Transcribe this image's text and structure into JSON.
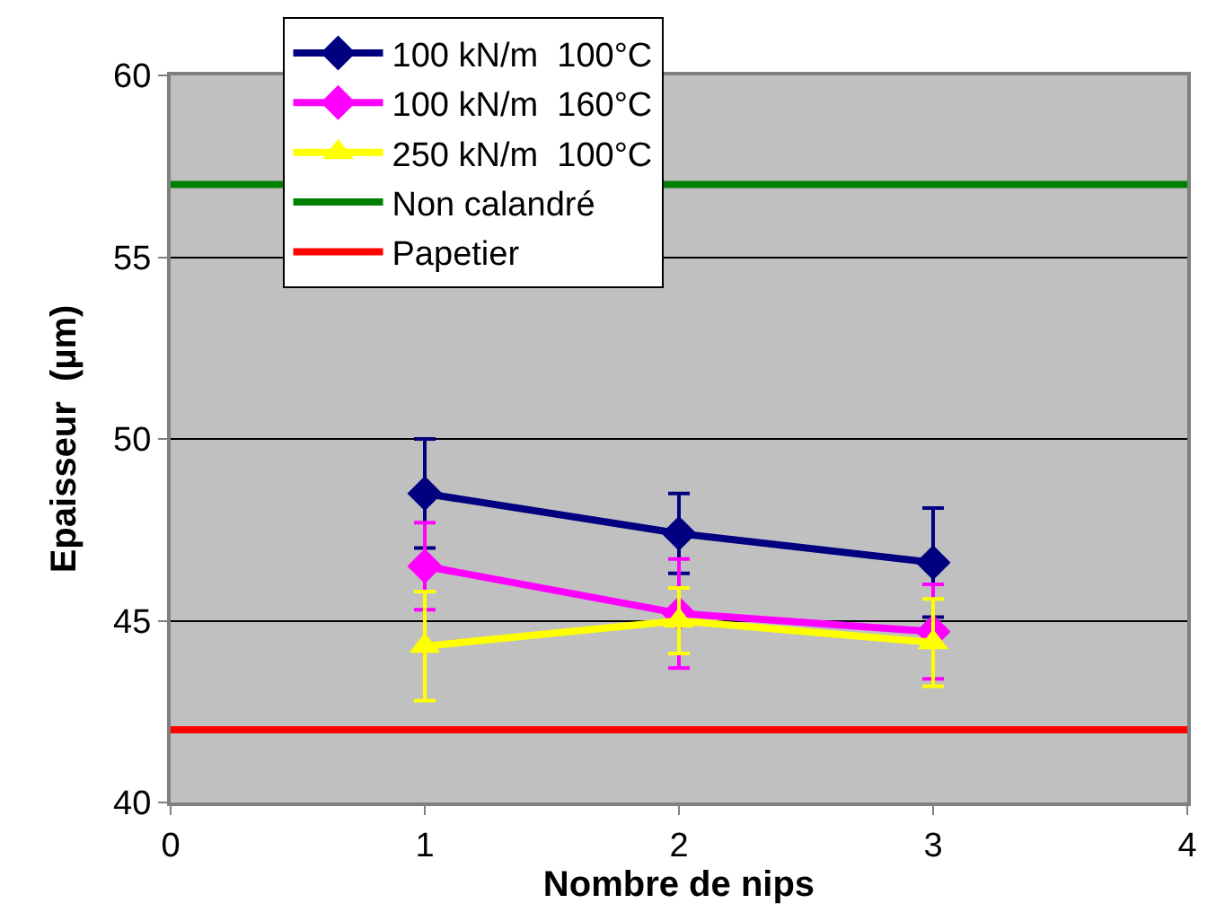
{
  "chart_data": {
    "type": "line",
    "xlabel": "Nombre de nips",
    "ylabel": "Epaisseur  (µm)",
    "x": [
      1,
      2,
      3
    ],
    "xlim": [
      0,
      4
    ],
    "xticks": [
      0,
      1,
      2,
      3,
      4
    ],
    "ylim": [
      40,
      60
    ],
    "yticks": [
      40,
      45,
      50,
      55,
      60
    ],
    "grid": "y",
    "legend": "top",
    "series": [
      {
        "name": "100 kN/m  100°C",
        "color": "#000080",
        "marker": "diamond",
        "values": [
          48.5,
          47.4,
          46.6
        ],
        "errors": [
          1.5,
          1.1,
          1.5
        ]
      },
      {
        "name": "100 kN/m  160°C",
        "color": "#ff00ff",
        "marker": "diamond",
        "values": [
          46.5,
          45.2,
          44.7
        ],
        "errors": [
          1.2,
          1.5,
          1.3
        ]
      },
      {
        "name": "250 kN/m  100°C",
        "color": "#ffff00",
        "marker": "triangle",
        "values": [
          44.3,
          45.0,
          44.4
        ],
        "errors": [
          1.5,
          0.9,
          1.2
        ]
      }
    ],
    "ref_lines": [
      {
        "axis": "y",
        "value": 57,
        "label": "Non calandré",
        "color": "#008000"
      },
      {
        "axis": "y",
        "value": 42,
        "label": "Papetier",
        "color": "#ff0000"
      }
    ]
  }
}
